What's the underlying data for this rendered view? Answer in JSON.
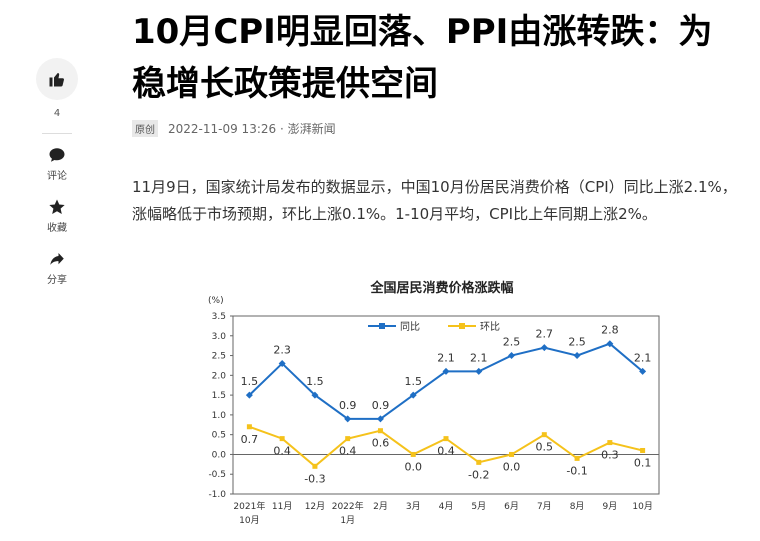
{
  "article": {
    "title": "10月CPI明显回落、PPI由涨转跌：为稳增长政策提供空间",
    "badge": "原创",
    "meta": "2022-11-09 13:26 · 澎湃新闻",
    "paragraph": "11月9日，国家统计局发布的数据显示，中国10月份居民消费价格（CPI）同比上涨2.1%，涨幅略低于市场预期，环比上涨0.1%。1-10月平均，CPI比上年同期上涨2%。"
  },
  "sidebar": {
    "like_count": "4",
    "comment_label": "评论",
    "favorite_label": "收藏",
    "share_label": "分享",
    "icons": [
      "thumbs-up-icon",
      "comment-icon",
      "star-icon",
      "share-icon"
    ]
  },
  "chart_data": {
    "type": "line",
    "title": "全国居民消费价格涨跌幅",
    "ylabel": "(%)",
    "ylim": [
      -1.0,
      3.5
    ],
    "yticks": [
      "3.5",
      "3.0",
      "2.5",
      "2.0",
      "1.5",
      "1.0",
      "0.5",
      "0.0",
      "-0.5",
      "-1.0"
    ],
    "categories": [
      "2021年\n10月",
      "11月",
      "12月",
      "2022年\n1月",
      "2月",
      "3月",
      "4月",
      "5月",
      "6月",
      "7月",
      "8月",
      "9月",
      "10月"
    ],
    "legend_position": "top",
    "series": [
      {
        "name": "同比",
        "color": "#1f6fc5",
        "values": [
          1.5,
          2.3,
          1.5,
          0.9,
          0.9,
          1.5,
          2.1,
          2.1,
          2.5,
          2.7,
          2.5,
          2.8,
          2.1
        ]
      },
      {
        "name": "环比",
        "color": "#f5c21b",
        "values": [
          0.7,
          0.4,
          -0.3,
          0.4,
          0.6,
          0.0,
          0.4,
          -0.2,
          0.0,
          0.5,
          -0.1,
          0.3,
          0.1
        ]
      }
    ]
  }
}
